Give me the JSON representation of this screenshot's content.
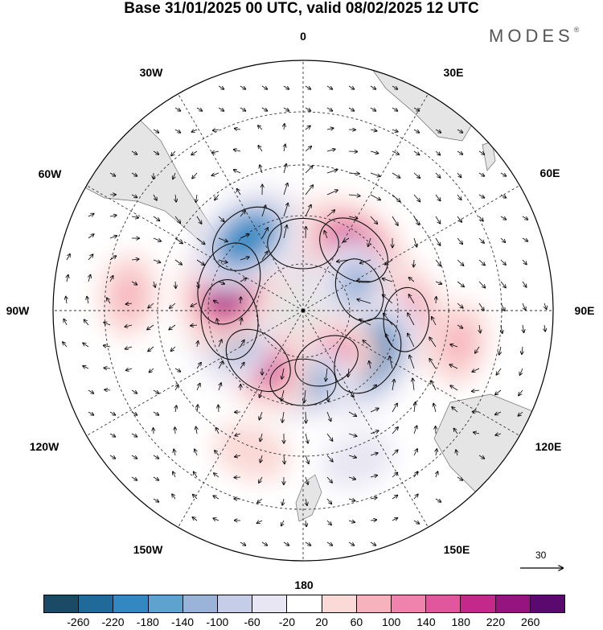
{
  "title": "Base 31/01/2025 00 UTC, valid 08/02/2025 12 UTC",
  "brand": {
    "name": "MODES",
    "mark": "®"
  },
  "longitude_labels": [
    "0",
    "30E",
    "60E",
    "90E",
    "120E",
    "150E",
    "180",
    "150W",
    "120W",
    "90W",
    "60W",
    "30W"
  ],
  "reference_vector": {
    "label": "30"
  },
  "colorbar": {
    "colors": [
      "#1b4a66",
      "#1f6a99",
      "#3388c2",
      "#5ea2cf",
      "#9ab3d9",
      "#c5cde8",
      "#e8e6f2",
      "#ffffff",
      "#fbd9d6",
      "#f6b3bd",
      "#f083ad",
      "#e0579e",
      "#c4288a",
      "#961480",
      "#5a0a6e"
    ],
    "ticks": [
      "-260",
      "-220",
      "-180",
      "-140",
      "-100",
      "-60",
      "-20",
      "20",
      "60",
      "100",
      "140",
      "180",
      "220",
      "260"
    ]
  },
  "anomalies": [
    {
      "lon": 0,
      "colat": 30,
      "value": 170
    },
    {
      "lon": 20,
      "colat": 25,
      "value": -80
    },
    {
      "lon": 40,
      "colat": 35,
      "value": 200
    },
    {
      "lon": 70,
      "colat": 27,
      "value": -130
    },
    {
      "lon": 95,
      "colat": 45,
      "value": 130
    },
    {
      "lon": 125,
      "colat": 35,
      "value": -230
    },
    {
      "lon": 155,
      "colat": 25,
      "value": 140
    },
    {
      "lon": 180,
      "colat": 32,
      "value": -140
    },
    {
      "lon": -138,
      "colat": 30,
      "value": 180
    },
    {
      "lon": -97,
      "colat": 33,
      "value": -220
    },
    {
      "lon": -70,
      "colat": 35,
      "value": 240
    },
    {
      "lon": -38,
      "colat": 40,
      "value": -200
    },
    {
      "lon": 102,
      "colat": 65,
      "value": 60
    },
    {
      "lon": -85,
      "colat": 70,
      "value": 60
    },
    {
      "lon": -160,
      "colat": 62,
      "value": 40
    },
    {
      "lon": 160,
      "colat": 65,
      "value": -30
    }
  ]
}
